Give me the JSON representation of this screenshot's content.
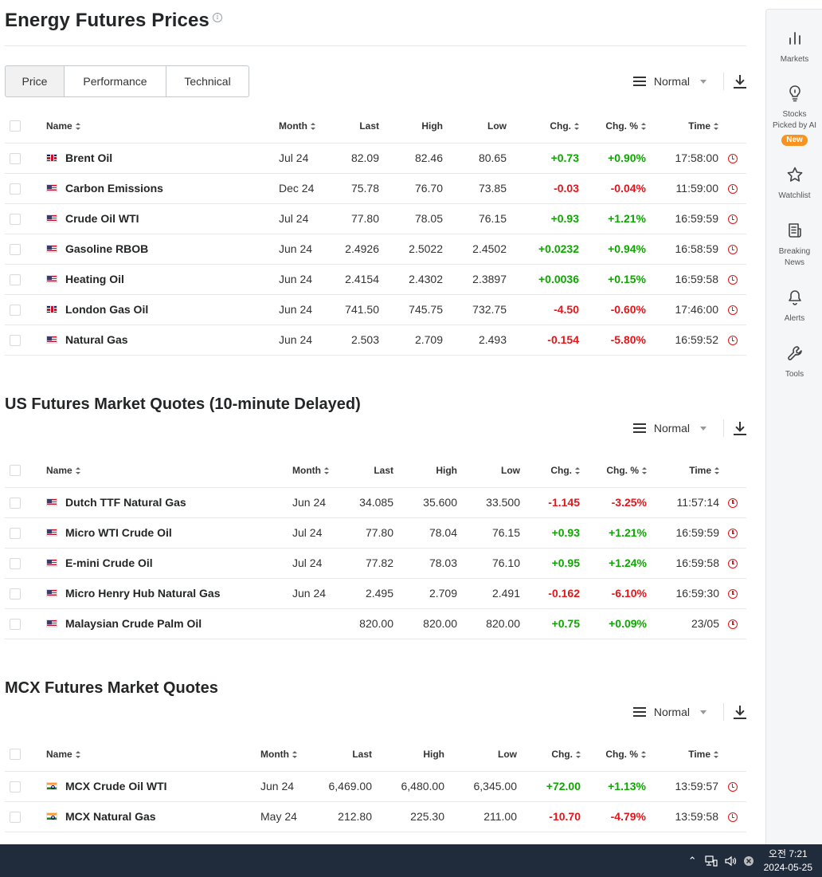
{
  "page": {
    "title": "Energy Futures Prices"
  },
  "tabs": [
    "Price",
    "Performance",
    "Technical"
  ],
  "toolbar": {
    "view": "Normal"
  },
  "columns1": [
    "Name",
    "Month",
    "Last",
    "High",
    "Low",
    "Chg.",
    "Chg. %",
    "Time"
  ],
  "table1": [
    {
      "flag": "uk",
      "name": "Brent Oil",
      "month": "Jul 24",
      "last": "82.09",
      "high": "82.46",
      "low": "80.65",
      "chg": "+0.73",
      "pct": "+0.90%",
      "time": "17:58:00",
      "dir": "pos"
    },
    {
      "flag": "us",
      "name": "Carbon Emissions",
      "month": "Dec 24",
      "last": "75.78",
      "high": "76.70",
      "low": "73.85",
      "chg": "-0.03",
      "pct": "-0.04%",
      "time": "11:59:00",
      "dir": "neg"
    },
    {
      "flag": "us",
      "name": "Crude Oil WTI",
      "month": "Jul 24",
      "last": "77.80",
      "high": "78.05",
      "low": "76.15",
      "chg": "+0.93",
      "pct": "+1.21%",
      "time": "16:59:59",
      "dir": "pos"
    },
    {
      "flag": "us",
      "name": "Gasoline RBOB",
      "month": "Jun 24",
      "last": "2.4926",
      "high": "2.5022",
      "low": "2.4502",
      "chg": "+0.0232",
      "pct": "+0.94%",
      "time": "16:58:59",
      "dir": "pos"
    },
    {
      "flag": "us",
      "name": "Heating Oil",
      "month": "Jun 24",
      "last": "2.4154",
      "high": "2.4302",
      "low": "2.3897",
      "chg": "+0.0036",
      "pct": "+0.15%",
      "time": "16:59:58",
      "dir": "pos"
    },
    {
      "flag": "uk",
      "name": "London Gas Oil",
      "month": "Jun 24",
      "last": "741.50",
      "high": "745.75",
      "low": "732.75",
      "chg": "-4.50",
      "pct": "-0.60%",
      "time": "17:46:00",
      "dir": "neg"
    },
    {
      "flag": "us",
      "name": "Natural Gas",
      "month": "Jun 24",
      "last": "2.503",
      "high": "2.709",
      "low": "2.493",
      "chg": "-0.154",
      "pct": "-5.80%",
      "time": "16:59:52",
      "dir": "neg"
    }
  ],
  "section2": {
    "title": "US Futures Market Quotes (10-minute Delayed)"
  },
  "table2": [
    {
      "flag": "us",
      "name": "Dutch TTF Natural Gas",
      "month": "Jun 24",
      "last": "34.085",
      "high": "35.600",
      "low": "33.500",
      "chg": "-1.145",
      "pct": "-3.25%",
      "time": "11:57:14",
      "dir": "neg"
    },
    {
      "flag": "us",
      "name": "Micro WTI Crude Oil",
      "month": "Jul 24",
      "last": "77.80",
      "high": "78.04",
      "low": "76.15",
      "chg": "+0.93",
      "pct": "+1.21%",
      "time": "16:59:59",
      "dir": "pos"
    },
    {
      "flag": "us",
      "name": "E-mini Crude Oil",
      "month": "Jul 24",
      "last": "77.82",
      "high": "78.03",
      "low": "76.10",
      "chg": "+0.95",
      "pct": "+1.24%",
      "time": "16:59:58",
      "dir": "pos"
    },
    {
      "flag": "us",
      "name": "Micro Henry Hub Natural Gas",
      "month": "Jun 24",
      "last": "2.495",
      "high": "2.709",
      "low": "2.491",
      "chg": "-0.162",
      "pct": "-6.10%",
      "time": "16:59:30",
      "dir": "neg"
    },
    {
      "flag": "us",
      "name": "Malaysian Crude Palm Oil",
      "month": "",
      "last": "820.00",
      "high": "820.00",
      "low": "820.00",
      "chg": "+0.75",
      "pct": "+0.09%",
      "time": "23/05",
      "dir": "pos"
    }
  ],
  "section3": {
    "title": "MCX Futures Market Quotes"
  },
  "table3": [
    {
      "flag": "in",
      "name": "MCX Crude Oil WTI",
      "month": "Jun 24",
      "last": "6,469.00",
      "high": "6,480.00",
      "low": "6,345.00",
      "chg": "+72.00",
      "pct": "+1.13%",
      "time": "13:59:57",
      "dir": "pos"
    },
    {
      "flag": "in",
      "name": "MCX Natural Gas",
      "month": "May 24",
      "last": "212.80",
      "high": "225.30",
      "low": "211.00",
      "chg": "-10.70",
      "pct": "-4.79%",
      "time": "13:59:58",
      "dir": "neg"
    }
  ],
  "sidebar": {
    "markets": "Markets",
    "stocks_line1": "Stocks",
    "stocks_line2": "Picked by AI",
    "stocks_badge": "New",
    "watchlist": "Watchlist",
    "news_line1": "Breaking",
    "news_line2": "News",
    "alerts": "Alerts",
    "tools": "Tools"
  },
  "taskbar": {
    "time": "오전 7:21",
    "date": "2024-05-25"
  },
  "colors": {
    "positive": "#0ea600",
    "negative": "#e31519",
    "taskbar": "#202c3c",
    "badge": "#f7931e"
  }
}
